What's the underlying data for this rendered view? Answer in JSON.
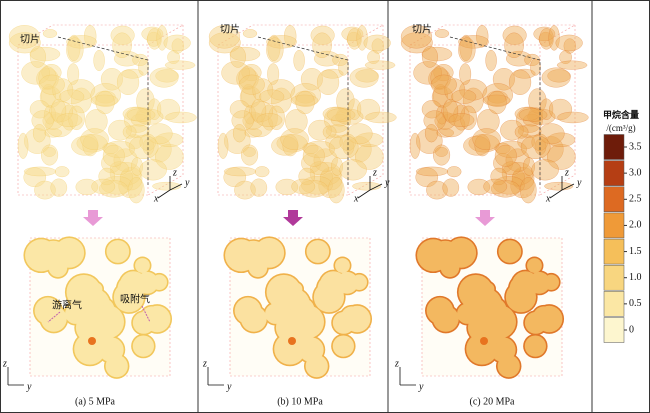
{
  "panels": [
    {
      "caption": "(a) 5 MPa",
      "slice_label": "切片",
      "annotations": [
        "游离气",
        "吸附气"
      ]
    },
    {
      "caption": "(b) 10 MPa",
      "slice_label": "切片"
    },
    {
      "caption": "(c) 20 MPa",
      "slice_label": "切片"
    }
  ],
  "axes_3d": [
    "x",
    "y",
    "z"
  ],
  "axes_2d": [
    "z",
    "y"
  ],
  "colorbar": {
    "title": "甲烷含量",
    "unit": "/(cm³/g)",
    "ticks": [
      0,
      0.5,
      {
        "value": 1,
        "label": "1.0"
      },
      1.5,
      {
        "value": 2,
        "label": "2.0"
      },
      2.5,
      {
        "value": 3,
        "label": "3.0"
      },
      3.5
    ]
  }
}
